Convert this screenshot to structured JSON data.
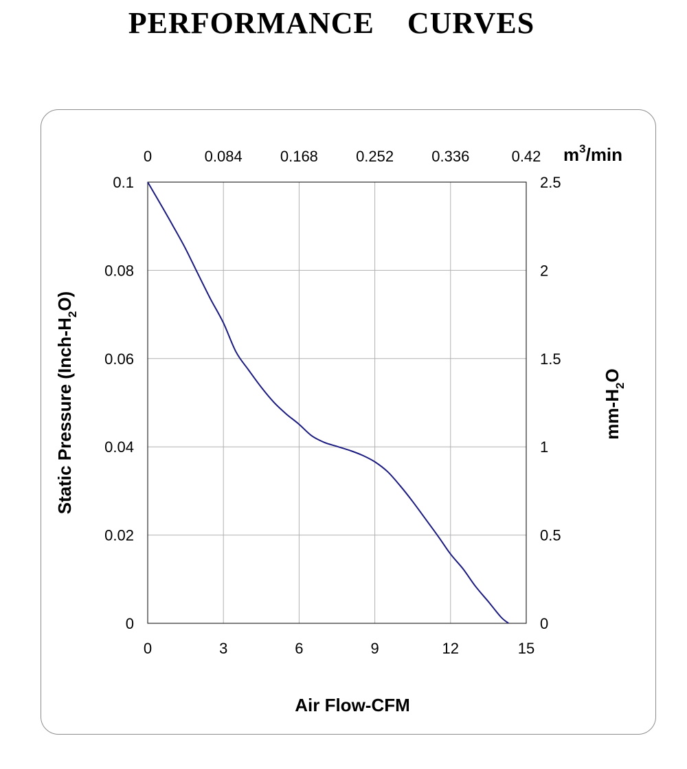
{
  "title": "PERFORMANCE    CURVES",
  "chart_data": {
    "type": "line",
    "x_bottom": {
      "label": "Air Flow-CFM",
      "ticks": [
        "0",
        "3",
        "6",
        "9",
        "12",
        "15"
      ],
      "range": [
        0,
        15
      ]
    },
    "x_top": {
      "unit_base": "m",
      "unit_sup": "3",
      "unit_rest": "/min",
      "ticks": [
        "0",
        "0.084",
        "0.168",
        "0.252",
        "0.336",
        "0.42"
      ],
      "range": [
        0,
        0.42
      ]
    },
    "y_left": {
      "label_main": "Static Pressure (Inch-H",
      "label_sub": "2",
      "label_end": "O)",
      "ticks": [
        "0",
        "0.02",
        "0.04",
        "0.06",
        "0.08",
        "0.1"
      ],
      "range": [
        0,
        0.1
      ]
    },
    "y_right": {
      "label_main": "mm-H",
      "label_sub": "2",
      "label_end": "O",
      "ticks": [
        "0",
        "0.5",
        "1",
        "1.5",
        "2",
        "2.5"
      ],
      "range": [
        0,
        2.5
      ]
    },
    "grid": true,
    "line_color": "#1a1a80",
    "series": [
      {
        "x": [
          0,
          0.5,
          1.0,
          1.5,
          2.0,
          2.5,
          3.0,
          3.5,
          4.0,
          4.5,
          5.0,
          5.5,
          6.0,
          6.5,
          7.0,
          7.5,
          8.0,
          8.5,
          9.0,
          9.5,
          10.0,
          10.5,
          11.0,
          11.5,
          12.0,
          12.5,
          13.0,
          13.5,
          14.0,
          14.3
        ],
        "y": [
          0.1,
          0.0951,
          0.0901,
          0.0849,
          0.0791,
          0.0734,
          0.0681,
          0.0615,
          0.0574,
          0.0535,
          0.0501,
          0.0474,
          0.0451,
          0.0425,
          0.041,
          0.0401,
          0.0392,
          0.0381,
          0.0366,
          0.0344,
          0.0312,
          0.0276,
          0.0237,
          0.0198,
          0.0157,
          0.0123,
          0.0083,
          0.0049,
          0.0014,
          0.0
        ]
      }
    ]
  }
}
